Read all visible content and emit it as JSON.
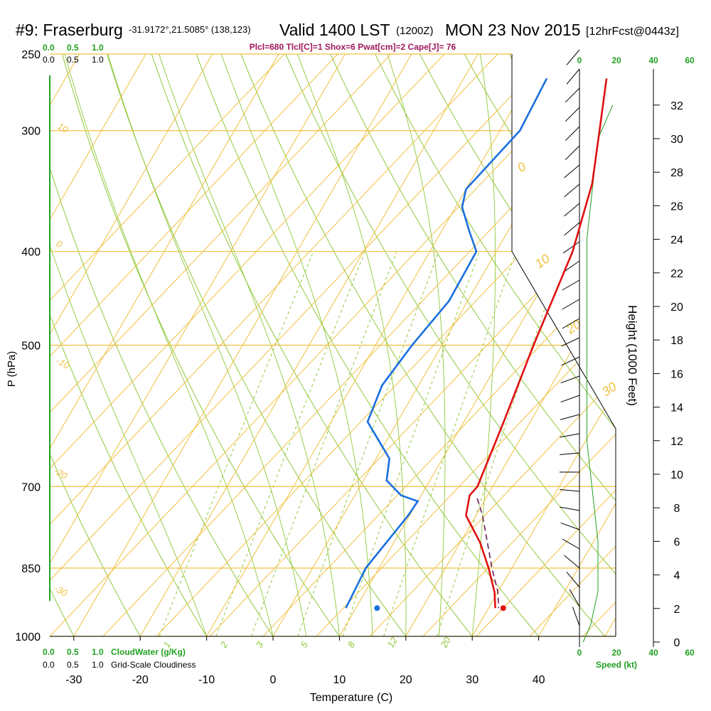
{
  "header": {
    "station": "#9: Fraserburg",
    "coords": "-31.9172°,21.5085° (138,123)",
    "valid": "Valid 1400 LST",
    "zulu": "(1200Z)",
    "date": "MON 23 Nov 2015",
    "fcst": "[12hrFcst@0443z]"
  },
  "params": "Plcl=680 Tlcl[C]=1 Shox=6 Pwat[cm]=2 Cape[J]= 76",
  "cloud_scale": {
    "top_green": [
      "0.0",
      "0.5",
      "1.0"
    ],
    "top_black": [
      "0.0",
      "0.5",
      "1.0"
    ],
    "bottom_green": [
      "0.0",
      "0.5",
      "1.0"
    ],
    "bottom_black": [
      "0.0",
      "0.5",
      "1.0"
    ],
    "cloudwater_label": "CloudWater (g/Kg)",
    "cloudiness_label": "Grid-Scale Cloudiness"
  },
  "speed_scale": {
    "top": [
      "0",
      "20",
      "40",
      "60"
    ],
    "bottom": [
      "0",
      "20",
      "40",
      "60"
    ],
    "label": "Speed (kt)"
  },
  "colors": {
    "temperature": "#e01010",
    "dewpoint": "#1a6fe0",
    "parcel": "#6a1a5a",
    "isobar": "#f0c040",
    "isotherm": "#f0c040",
    "adiabat": "#8fc83a",
    "mixing_ratio": "#8fc83a",
    "axis_green": "#22a022"
  },
  "chart_data": {
    "type": "line",
    "xlabel": "Temperature (C)",
    "ylabel": "P (hPa)",
    "y2label": "Height (1000 Feet)",
    "x_ticks": [
      -30,
      -20,
      -10,
      0,
      10,
      20,
      30,
      40
    ],
    "x_tick_labels": [
      "-30",
      "-20",
      "-10",
      "0",
      "10",
      "20",
      "30",
      "40"
    ],
    "y_ticks": [
      250,
      300,
      400,
      500,
      700,
      850,
      1000
    ],
    "y_tick_labels": [
      "250",
      "300",
      "400",
      "500",
      "700",
      "850",
      "1000"
    ],
    "height_ticks": [
      0,
      2,
      4,
      6,
      8,
      10,
      12,
      14,
      16,
      18,
      20,
      22,
      24,
      26,
      28,
      30,
      32
    ],
    "height_tick_labels": [
      "0",
      "2",
      "4",
      "6",
      "8",
      "10",
      "12",
      "14",
      "16",
      "18",
      "20",
      "22",
      "24",
      "26",
      "28",
      "30",
      "32"
    ],
    "isotherm_labels": [
      "10",
      "0",
      "-10",
      "-20",
      "-30",
      "0",
      "10",
      "20",
      "30"
    ],
    "mixing_ratio_labels": [
      "1",
      "2",
      "3",
      "5",
      "8",
      "12",
      "20"
    ],
    "series": [
      {
        "name": "Temperature",
        "points": [
          [
            1.5,
            265
          ],
          [
            5,
            300
          ],
          [
            8.5,
            340
          ],
          [
            11.5,
            400
          ],
          [
            13.8,
            500
          ],
          [
            16,
            600
          ],
          [
            17.7,
            700
          ],
          [
            17.3,
            715
          ],
          [
            18.5,
            750
          ],
          [
            23,
            800
          ],
          [
            26.5,
            850
          ],
          [
            29.5,
            900
          ],
          [
            31,
            935
          ]
        ]
      },
      {
        "name": "Dewpoint",
        "points": [
          [
            -7.5,
            265
          ],
          [
            -7,
            300
          ],
          [
            -10,
            345
          ],
          [
            -9,
            360
          ],
          [
            -6,
            380
          ],
          [
            -3,
            400
          ],
          [
            -2.8,
            450
          ],
          [
            -4.5,
            500
          ],
          [
            -5.5,
            550
          ],
          [
            -4.5,
            600
          ],
          [
            2,
            655
          ],
          [
            3.5,
            690
          ],
          [
            7,
            715
          ],
          [
            10,
            725
          ],
          [
            9.8,
            750
          ],
          [
            8,
            850
          ],
          [
            8.5,
            935
          ]
        ]
      },
      {
        "name": "Parcel",
        "points": [
          [
            18.7,
            720
          ],
          [
            21,
            750
          ],
          [
            27,
            850
          ],
          [
            30,
            900
          ],
          [
            31.5,
            935
          ]
        ]
      }
    ],
    "surface_temp": [
      32.2,
      935
    ],
    "surface_dewpoint": [
      13.2,
      935
    ],
    "wind_speed_profile": [
      [
        0,
        1
      ],
      [
        1,
        3
      ],
      [
        2,
        4
      ],
      [
        3,
        5
      ],
      [
        4,
        5
      ],
      [
        6,
        5
      ],
      [
        8,
        4
      ],
      [
        10,
        3
      ],
      [
        12,
        2
      ],
      [
        14,
        2
      ],
      [
        16,
        2
      ],
      [
        18,
        2
      ],
      [
        20,
        2
      ],
      [
        22,
        2
      ],
      [
        24,
        2
      ],
      [
        26,
        3
      ],
      [
        28,
        4
      ],
      [
        30,
        5
      ],
      [
        32,
        9
      ]
    ],
    "wind_barbs_from_deg": [
      200,
      210,
      220,
      230,
      240,
      250,
      260,
      265,
      270,
      275,
      280,
      285,
      290,
      290,
      295,
      295,
      300,
      300,
      300,
      305,
      305,
      310,
      310,
      310,
      310,
      315,
      315,
      315,
      315,
      320,
      320
    ]
  }
}
